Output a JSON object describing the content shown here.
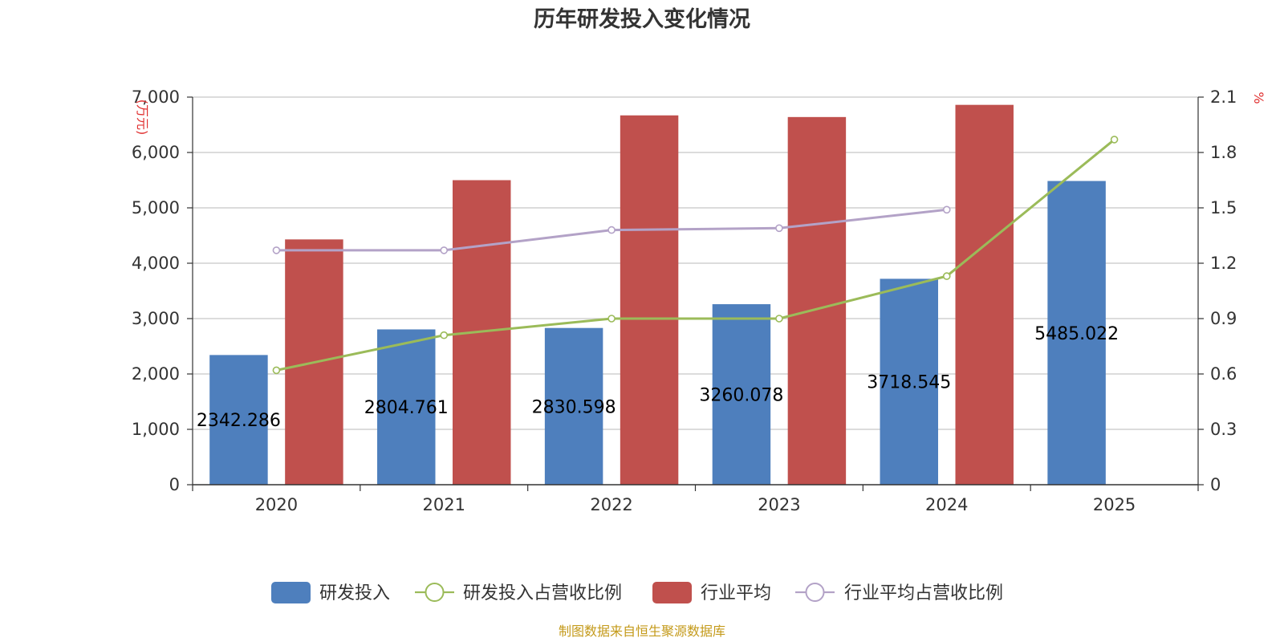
{
  "chart_data": {
    "type": "bar",
    "title": "历年研发投入变化情况",
    "categories": [
      "2020",
      "2021",
      "2022",
      "2023",
      "2024",
      "2025"
    ],
    "y_left": {
      "unit": "(万元)",
      "ylim": [
        0,
        7000
      ],
      "ticks": [
        "0",
        "1,000",
        "2,000",
        "3,000",
        "4,000",
        "5,000",
        "6,000",
        "7,000"
      ]
    },
    "y_right": {
      "unit": "%",
      "ylim": [
        0,
        2.1
      ],
      "ticks": [
        "0",
        "0.3",
        "0.6",
        "0.9",
        "1.2",
        "1.5",
        "1.8",
        "2.1"
      ]
    },
    "series": [
      {
        "name": "研发投入",
        "kind": "bar",
        "axis": "left",
        "color": "#4e7fbd",
        "values": [
          2342.286,
          2804.761,
          2830.598,
          3260.078,
          3718.545,
          5485.022
        ],
        "labels": [
          "2342.286",
          "2804.761",
          "2830.598",
          "3260.078",
          "3718.545",
          "5485.022"
        ]
      },
      {
        "name": "研发投入占营收比例",
        "kind": "line",
        "axis": "right",
        "color": "#9bbb59",
        "values": [
          0.62,
          0.81,
          0.9,
          0.9,
          1.13,
          1.87
        ]
      },
      {
        "name": "行业平均",
        "kind": "bar",
        "axis": "left",
        "color": "#c0504d",
        "values": [
          4430,
          5500,
          6670,
          6640,
          6860,
          null
        ]
      },
      {
        "name": "行业平均占营收比例",
        "kind": "line",
        "axis": "right",
        "color": "#b3a2c7",
        "values": [
          1.27,
          1.27,
          1.38,
          1.39,
          1.49,
          null
        ]
      }
    ],
    "grid": true,
    "legend_position": "bottom",
    "source": "制图数据来自恒生聚源数据库"
  }
}
